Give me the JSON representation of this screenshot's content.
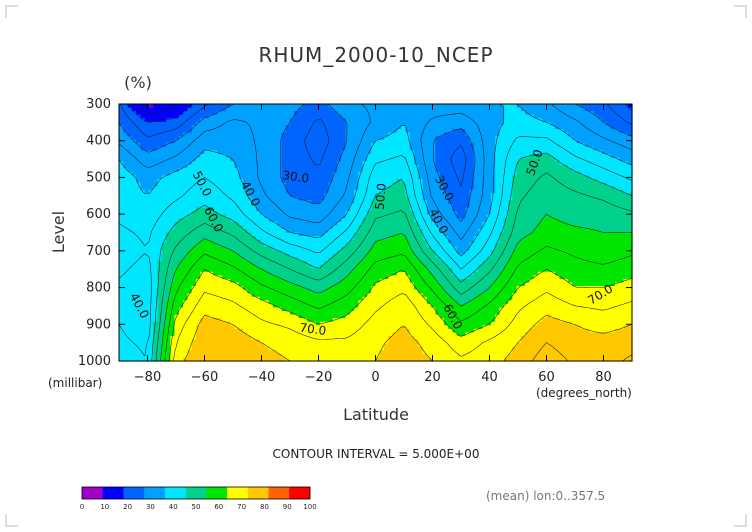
{
  "chart_data": {
    "type": "heatmap",
    "title": "RHUM_2000-10_NCEP",
    "units": "(%)",
    "xlabel": "Latitude",
    "ylabel": "Level",
    "x_unit": "(degrees_north)",
    "y_unit": "(millibar)",
    "xlim": [
      -90,
      90
    ],
    "ylim": [
      1000,
      300
    ],
    "x_ticks": [
      "-80",
      "-60",
      "-40",
      "-20",
      "0",
      "20",
      "40",
      "60",
      "80"
    ],
    "y_ticks": [
      "300",
      "400",
      "500",
      "600",
      "700",
      "800",
      "900",
      "1000"
    ],
    "x": [
      -90,
      -80,
      -70,
      -60,
      -50,
      -40,
      -30,
      -20,
      -10,
      0,
      10,
      20,
      30,
      40,
      50,
      60,
      70,
      80,
      90
    ],
    "y": [
      1000,
      950,
      900,
      850,
      800,
      750,
      700,
      650,
      600,
      550,
      500,
      450,
      400,
      350,
      300
    ],
    "z": [
      [
        48,
        45,
        78,
        85,
        84,
        82,
        80,
        78,
        78,
        80,
        83,
        80,
        76,
        78,
        82,
        88,
        84,
        83,
        86
      ],
      [
        46,
        44,
        75,
        84,
        83,
        80,
        78,
        76,
        76,
        79,
        82,
        78,
        72,
        76,
        80,
        85,
        82,
        82,
        83
      ],
      [
        45,
        42,
        72,
        82,
        80,
        76,
        74,
        70,
        72,
        77,
        80,
        74,
        66,
        70,
        77,
        82,
        80,
        78,
        80
      ],
      [
        45,
        42,
        68,
        78,
        76,
        72,
        68,
        64,
        68,
        74,
        78,
        70,
        60,
        66,
        74,
        78,
        75,
        74,
        76
      ],
      [
        44,
        42,
        64,
        74,
        72,
        66,
        62,
        58,
        63,
        71,
        74,
        64,
        52,
        60,
        70,
        74,
        70,
        70,
        72
      ],
      [
        46,
        43,
        60,
        70,
        66,
        60,
        55,
        50,
        58,
        67,
        70,
        58,
        45,
        54,
        66,
        70,
        67,
        66,
        68
      ],
      [
        48,
        45,
        56,
        64,
        60,
        53,
        48,
        44,
        52,
        62,
        64,
        50,
        38,
        48,
        62,
        66,
        64,
        62,
        64
      ],
      [
        46,
        44,
        52,
        58,
        54,
        46,
        40,
        38,
        46,
        58,
        60,
        44,
        33,
        44,
        58,
        62,
        61,
        60,
        60
      ],
      [
        44,
        42,
        48,
        52,
        48,
        40,
        34,
        32,
        40,
        54,
        56,
        38,
        28,
        40,
        56,
        60,
        58,
        58,
        56
      ],
      [
        42,
        40,
        44,
        48,
        44,
        36,
        30,
        28,
        36,
        50,
        52,
        34,
        26,
        38,
        54,
        58,
        56,
        54,
        50
      ],
      [
        43,
        38,
        42,
        45,
        42,
        34,
        28,
        26,
        34,
        48,
        50,
        32,
        24,
        38,
        52,
        56,
        52,
        48,
        44
      ],
      [
        40,
        32,
        36,
        42,
        40,
        34,
        28,
        24,
        32,
        44,
        46,
        30,
        22,
        38,
        50,
        52,
        46,
        42,
        38
      ],
      [
        34,
        26,
        30,
        38,
        38,
        34,
        28,
        22,
        30,
        40,
        42,
        30,
        26,
        38,
        46,
        46,
        40,
        36,
        32
      ],
      [
        30,
        20,
        22,
        32,
        36,
        34,
        30,
        24,
        30,
        36,
        40,
        34,
        32,
        38,
        42,
        40,
        36,
        30,
        24
      ],
      [
        26,
        8,
        14,
        24,
        30,
        32,
        32,
        28,
        34,
        36,
        40,
        38,
        38,
        40,
        40,
        36,
        30,
        26,
        18
      ]
    ],
    "contour_levels": [
      5,
      10,
      15,
      20,
      25,
      30,
      35,
      40,
      45,
      50,
      55,
      60,
      65,
      70,
      75,
      80,
      85,
      90,
      95
    ],
    "contour_labels": [
      {
        "text": "30.0",
        "lon": -28,
        "lev": 500
      },
      {
        "text": "40.0",
        "lon": -44,
        "lev": 545
      },
      {
        "text": "50.0",
        "lon": -61,
        "lev": 518
      },
      {
        "text": "60.0",
        "lon": -57,
        "lev": 615
      },
      {
        "text": "70.0",
        "lon": -22,
        "lev": 915
      },
      {
        "text": "50.0",
        "lon": 2,
        "lev": 552
      },
      {
        "text": "30.0",
        "lon": 24,
        "lev": 530
      },
      {
        "text": "40.0",
        "lon": 22,
        "lev": 620
      },
      {
        "text": "60.0",
        "lon": 27,
        "lev": 880
      },
      {
        "text": "50.0",
        "lon": 56,
        "lev": 460
      },
      {
        "text": "70.0",
        "lon": 79,
        "lev": 820
      },
      {
        "text": "40.0",
        "lon": -83,
        "lev": 850
      }
    ],
    "colorbar": {
      "bounds": [
        0,
        10,
        20,
        30,
        40,
        50,
        60,
        70,
        80,
        90,
        100
      ],
      "colors": [
        "#a000c8",
        "#0000ff",
        "#0064ff",
        "#00a0ff",
        "#00e6ff",
        "#00d28c",
        "#00e600",
        "#ffff00",
        "#ffc800",
        "#ff6400",
        "#ff0000"
      ]
    },
    "contour_interval_note": "CONTOUR INTERVAL = 5.000E+00",
    "mean_note": "(mean) lon:0..357.5"
  }
}
